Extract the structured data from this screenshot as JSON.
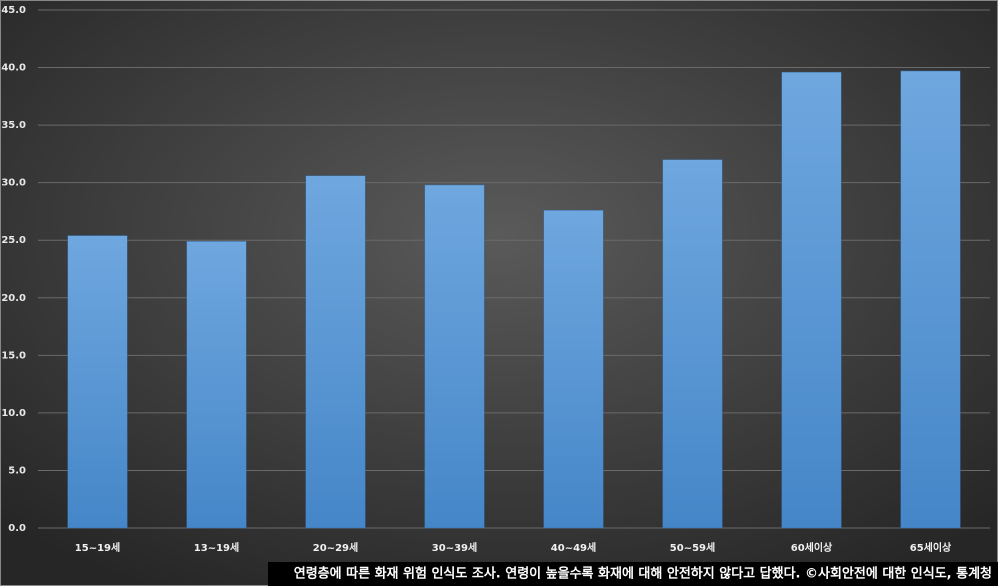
{
  "chart_data": {
    "type": "bar",
    "caption": "연령층에 따른 화재 위험 인식도 조사. 연령이 높을수록 화재에 대해 안전하지 않다고 답했다.  ©사회안전에 대한 인식도, 통계청",
    "categories": [
      "15~19세",
      "13~19세",
      "20~29세",
      "30~39세",
      "40~49세",
      "50~59세",
      "60세이상",
      "65세이상"
    ],
    "values": [
      25.4,
      24.9,
      30.6,
      29.8,
      27.6,
      32.0,
      39.6,
      39.7
    ],
    "color": "#5b9bd5",
    "ylim": [
      0,
      45
    ],
    "yticks": [
      {
        "value": 0,
        "label": "0.0"
      },
      {
        "value": 5,
        "label": "5.0"
      },
      {
        "value": 10,
        "label": "10.0"
      },
      {
        "value": 15,
        "label": "15.0"
      },
      {
        "value": 20,
        "label": "20.0"
      },
      {
        "value": 25,
        "label": "25.0"
      },
      {
        "value": 30,
        "label": "30.0"
      },
      {
        "value": 35,
        "label": "35.0"
      },
      {
        "value": 40,
        "label": "40.0"
      },
      {
        "value": 45,
        "label": "45.0"
      }
    ],
    "grid": true
  }
}
